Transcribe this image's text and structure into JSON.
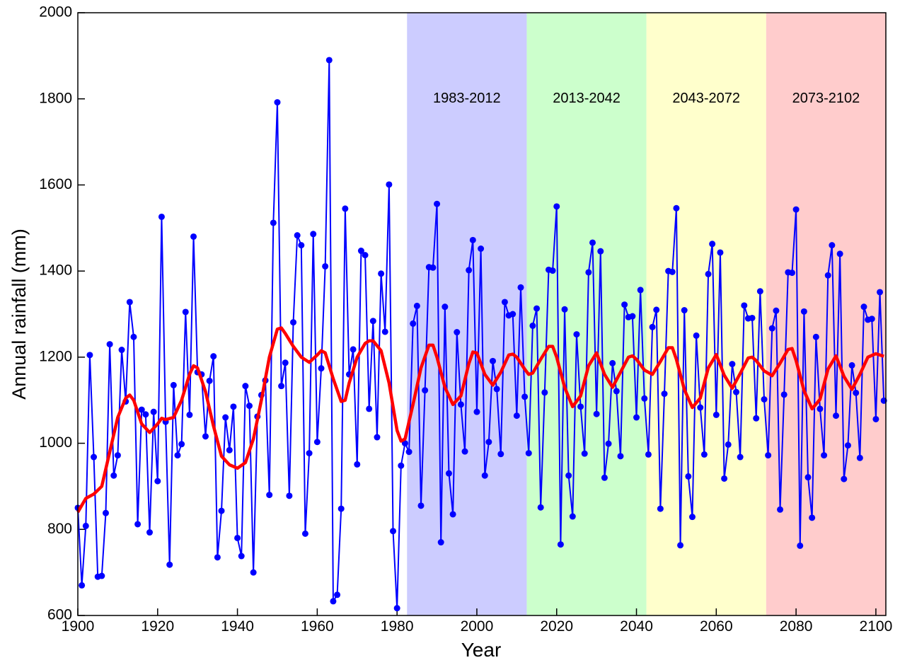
{
  "chart_data": {
    "type": "line",
    "x_label": "Year",
    "y_label": "Annual rainfall (mm)",
    "xlim": [
      1900,
      2102.5
    ],
    "ylim": [
      600,
      2000
    ],
    "xticks": [
      1900,
      1920,
      1940,
      1960,
      1980,
      2000,
      2020,
      2040,
      2060,
      2080,
      2100
    ],
    "yticks": [
      600,
      800,
      1000,
      1200,
      1400,
      1600,
      1800,
      2000
    ],
    "bands": [
      {
        "label": "1983-2012",
        "start": 1982.5,
        "end": 2012.5,
        "color": "#ccccff"
      },
      {
        "label": "2013-2042",
        "start": 2012.5,
        "end": 2042.5,
        "color": "#ccffcc"
      },
      {
        "label": "2043-2072",
        "start": 2042.5,
        "end": 2072.5,
        "color": "#ffffcc"
      },
      {
        "label": "2073-2102",
        "start": 2072.5,
        "end": 2102.5,
        "color": "#ffcccc"
      }
    ],
    "band_label_y": 1800,
    "series": [
      {
        "color": "#0000ff",
        "markers": true,
        "x": [
          1900,
          1901,
          1902,
          1903,
          1904,
          1905,
          1906,
          1907,
          1908,
          1909,
          1910,
          1911,
          1912,
          1913,
          1914,
          1915,
          1916,
          1917,
          1918,
          1919,
          1920,
          1921,
          1922,
          1923,
          1924,
          1925,
          1926,
          1927,
          1928,
          1929,
          1930,
          1931,
          1932,
          1933,
          1934,
          1935,
          1936,
          1937,
          1938,
          1939,
          1940,
          1941,
          1942,
          1943,
          1944,
          1945,
          1946,
          1947,
          1948,
          1949,
          1950,
          1951,
          1952,
          1953,
          1954,
          1955,
          1956,
          1957,
          1958,
          1959,
          1960,
          1961,
          1962,
          1963,
          1964,
          1965,
          1966,
          1967,
          1968,
          1969,
          1970,
          1971,
          1972,
          1973,
          1974,
          1975,
          1976,
          1977,
          1978,
          1979,
          1980,
          1981,
          1982,
          1983,
          1984,
          1985,
          1986,
          1987,
          1988,
          1989,
          1990,
          1991,
          1992,
          1993,
          1994,
          1995,
          1996,
          1997,
          1998,
          1999,
          2000,
          2001,
          2002,
          2003,
          2004,
          2005,
          2006,
          2007,
          2008,
          2009,
          2010,
          2011,
          2012,
          2013,
          2014,
          2015,
          2016,
          2017,
          2018,
          2019,
          2020,
          2021,
          2022,
          2023,
          2024,
          2025,
          2026,
          2027,
          2028,
          2029,
          2030,
          2031,
          2032,
          2033,
          2034,
          2035,
          2036,
          2037,
          2038,
          2039,
          2040,
          2041,
          2042,
          2043,
          2044,
          2045,
          2046,
          2047,
          2048,
          2049,
          2050,
          2051,
          2052,
          2053,
          2054,
          2055,
          2056,
          2057,
          2058,
          2059,
          2060,
          2061,
          2062,
          2063,
          2064,
          2065,
          2066,
          2067,
          2068,
          2069,
          2070,
          2071,
          2072,
          2073,
          2074,
          2075,
          2076,
          2077,
          2078,
          2079,
          2080,
          2081,
          2082,
          2083,
          2084,
          2085,
          2086,
          2087,
          2088,
          2089,
          2090,
          2091,
          2092,
          2093,
          2094,
          2095,
          2096,
          2097,
          2098,
          2099,
          2100,
          2101,
          2102
        ],
        "values": [
          850,
          670,
          808,
          1205,
          968,
          690,
          692,
          838,
          1230,
          925,
          972,
          1217,
          1097,
          1328,
          1247,
          812,
          1078,
          1067,
          793,
          1073,
          912,
          1526,
          1050,
          718,
          1135,
          972,
          998,
          1305,
          1066,
          1480,
          1165,
          1160,
          1016,
          1145,
          1202,
          735,
          843,
          1060,
          984,
          1085,
          780,
          738,
          1133,
          1087,
          700,
          1062,
          1112,
          1146,
          880,
          1512,
          1792,
          1133,
          1187,
          878,
          1281,
          1483,
          1460,
          790,
          977,
          1486,
          1003,
          1174,
          1411,
          1890,
          633,
          648,
          848,
          1545,
          1160,
          1218,
          951,
          1447,
          1437,
          1080,
          1284,
          1014,
          1394,
          1259,
          1601,
          796,
          617,
          948,
          1000,
          980,
          1278,
          1319,
          855,
          1123,
          1409,
          1408,
          1556,
          770,
          1317,
          930,
          835,
          1258,
          1090,
          981,
          1402,
          1472,
          1073,
          1452,
          925,
          1003,
          1191,
          1126,
          975,
          1328,
          1297,
          1300,
          1064,
          1362,
          1108,
          977,
          1273,
          1313,
          851,
          1118,
          1403,
          1401,
          1550,
          765,
          1311,
          925,
          830,
          1253,
          1085,
          976,
          1397,
          1466,
          1068,
          1446,
          920,
          999,
          1186,
          1121,
          970,
          1322,
          1293,
          1295,
          1060,
          1356,
          1104,
          974,
          1270,
          1310,
          848,
          1115,
          1400,
          1398,
          1546,
          763,
          1309,
          923,
          829,
          1250,
          1083,
          974,
          1393,
          1463,
          1066,
          1443,
          918,
          997,
          1184,
          1119,
          968,
          1320,
          1290,
          1291,
          1058,
          1353,
          1102,
          972,
          1267,
          1308,
          846,
          1113,
          1397,
          1396,
          1543,
          762,
          1306,
          921,
          827,
          1247,
          1080,
          972,
          1390,
          1460,
          1064,
          1440,
          917,
          995,
          1181,
          1117,
          966,
          1317,
          1287,
          1289,
          1056,
          1351,
          1099
        ]
      },
      {
        "color": "#ff0000",
        "markers": false,
        "x": [
          1900,
          1902,
          1904,
          1906,
          1908,
          1910,
          1912,
          1913,
          1914,
          1916,
          1918,
          1920,
          1921,
          1922,
          1924,
          1926,
          1928,
          1929,
          1930,
          1932,
          1934,
          1936,
          1938,
          1940,
          1942,
          1944,
          1946,
          1948,
          1950,
          1951,
          1952,
          1954,
          1956,
          1958,
          1960,
          1961,
          1962,
          1964,
          1966,
          1967,
          1968,
          1970,
          1972,
          1973,
          1974,
          1976,
          1978,
          1980,
          1981,
          1982,
          1984,
          1986,
          1988,
          1989,
          1990,
          1992,
          1994,
          1996,
          1998,
          1999,
          2000,
          2002,
          2004,
          2006,
          2008,
          2009,
          2010,
          2012,
          2013,
          2014,
          2016,
          2018,
          2019,
          2020,
          2022,
          2024,
          2026,
          2028,
          2030,
          2032,
          2034,
          2036,
          2038,
          2039,
          2040,
          2042,
          2044,
          2046,
          2048,
          2049,
          2050,
          2052,
          2054,
          2056,
          2058,
          2060,
          2062,
          2064,
          2066,
          2068,
          2069,
          2070,
          2072,
          2074,
          2076,
          2078,
          2079,
          2080,
          2082,
          2084,
          2086,
          2088,
          2090,
          2092,
          2094,
          2096,
          2098,
          2100,
          2102
        ],
        "values": [
          840,
          872,
          882,
          900,
          980,
          1060,
          1105,
          1112,
          1100,
          1045,
          1025,
          1045,
          1058,
          1055,
          1060,
          1100,
          1160,
          1180,
          1175,
          1120,
          1040,
          970,
          950,
          942,
          955,
          1010,
          1100,
          1200,
          1265,
          1268,
          1255,
          1225,
          1200,
          1188,
          1205,
          1215,
          1210,
          1150,
          1097,
          1100,
          1140,
          1200,
          1232,
          1238,
          1238,
          1215,
          1140,
          1030,
          1005,
          1010,
          1090,
          1175,
          1228,
          1228,
          1200,
          1130,
          1090,
          1110,
          1185,
          1212,
          1210,
          1160,
          1135,
          1165,
          1205,
          1207,
          1200,
          1172,
          1160,
          1163,
          1195,
          1225,
          1225,
          1200,
          1130,
          1085,
          1110,
          1180,
          1210,
          1160,
          1130,
          1165,
          1200,
          1203,
          1195,
          1170,
          1160,
          1190,
          1222,
          1222,
          1195,
          1125,
          1083,
          1105,
          1175,
          1206,
          1158,
          1128,
          1162,
          1198,
          1200,
          1192,
          1168,
          1157,
          1186,
          1218,
          1220,
          1192,
          1122,
          1080,
          1102,
          1172,
          1203,
          1155,
          1125,
          1160,
          1200,
          1208,
          1202
        ]
      }
    ]
  }
}
